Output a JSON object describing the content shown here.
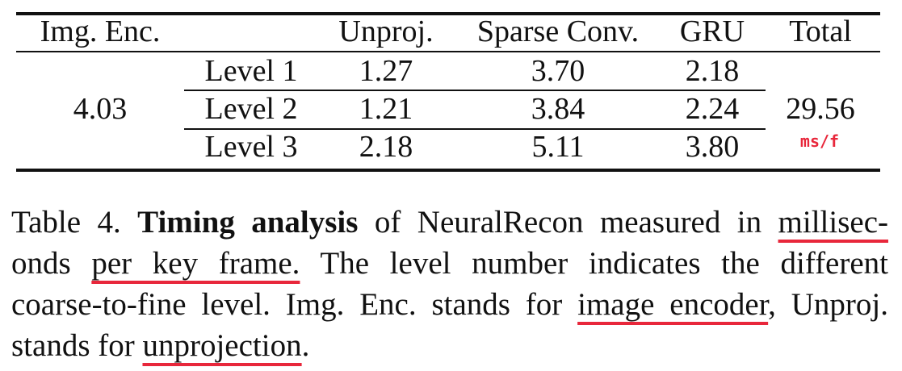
{
  "table": {
    "headers": {
      "img_enc": "Img. Enc.",
      "unproj": "Unproj.",
      "sparse_conv": "Sparse Conv.",
      "gru": "GRU",
      "total": "Total"
    },
    "img_enc_value": "4.03",
    "rows": [
      {
        "level": "Level 1",
        "unproj": "1.27",
        "sparse_conv": "3.70",
        "gru": "2.18"
      },
      {
        "level": "Level 2",
        "unproj": "1.21",
        "sparse_conv": "3.84",
        "gru": "2.24"
      },
      {
        "level": "Level 3",
        "unproj": "2.18",
        "sparse_conv": "5.11",
        "gru": "3.80"
      }
    ],
    "total_value": "29.56",
    "total_unit": "ms/f"
  },
  "caption": {
    "label": "Table 4.",
    "bold": "Timing analysis",
    "l1_text": "of NeuralRecon measured in",
    "l1_ul": "millisec-",
    "l2_ul_a": "onds",
    "l2_ul_b": "per key frame.",
    "l2_text": "The level number indicates the different",
    "l3_text_a": "coarse-to-fine level. Img. Enc. stands for",
    "l3_ul": "image encoder",
    "l3_text_b": ", Unproj.",
    "l4_text": "stands for",
    "l4_ul": "unprojection",
    "l4_end": "."
  },
  "colors": {
    "annotation_red": "#e8273b",
    "text": "#111111"
  }
}
